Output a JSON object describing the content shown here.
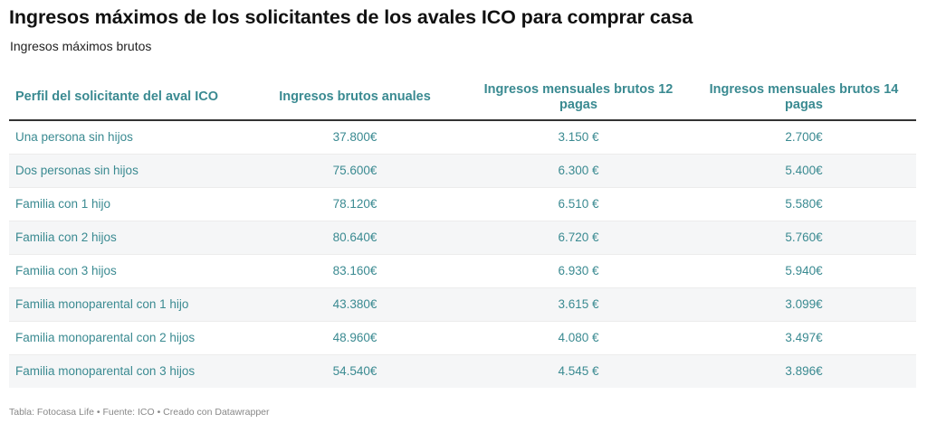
{
  "title": "Ingresos máximos de los solicitantes de los avales ICO para comprar casa",
  "subtitle": "Ingresos máximos brutos",
  "table": {
    "headers": [
      "Perfil del solicitante del aval ICO",
      "Ingresos brutos anuales",
      "Ingresos mensuales brutos 12 pagas",
      "Ingresos mensuales brutos 14 pagas"
    ],
    "rows": [
      [
        "Una persona sin hijos",
        "37.800€",
        "3.150 €",
        "2.700€"
      ],
      [
        "Dos personas sin hijos",
        "75.600€",
        "6.300 €",
        "5.400€"
      ],
      [
        "Familia con 1 hijo",
        "78.120€",
        "6.510 €",
        "5.580€"
      ],
      [
        "Familia con 2 hijos",
        "80.640€",
        "6.720 €",
        "5.760€"
      ],
      [
        "Familia con 3 hijos",
        "83.160€",
        "6.930 €",
        "5.940€"
      ],
      [
        "Familia monoparental con 1 hijo",
        "43.380€",
        "3.615 €",
        "3.099€"
      ],
      [
        "Familia monoparental con 2 hijos",
        "48.960€",
        "4.080 €",
        "3.497€"
      ],
      [
        "Familia monoparental con 3 hijos",
        "54.540€",
        "4.545 €",
        "3.896€"
      ]
    ]
  },
  "footer": "Tabla: Fotocasa Life • Fuente: ICO • Creado con Datawrapper",
  "colors": {
    "accent_text": "#3a8a91",
    "title_text": "#111111",
    "row_shade": "#f5f6f7",
    "header_rule": "#333333",
    "footer_text": "#888888"
  }
}
